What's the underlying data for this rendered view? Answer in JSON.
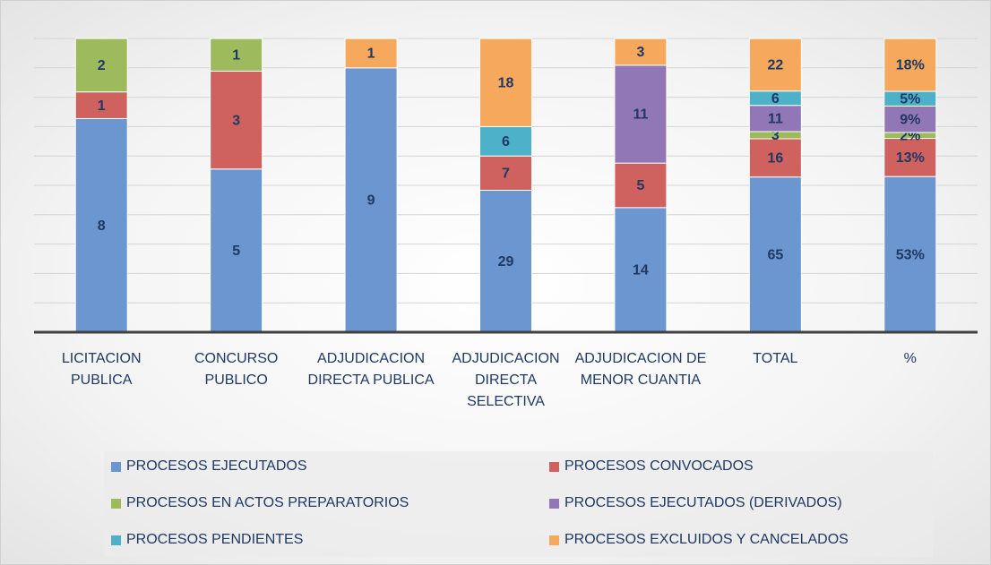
{
  "chart_data": {
    "type": "stacked_percent_bar",
    "categories": [
      "LICITACION PUBLICA",
      "CONCURSO PUBLICO",
      "ADJUDICACION DIRECTA PUBLICA",
      "ADJUDICACION DIRECTA SELECTIVA",
      "ADJUDICACION DE MENOR CUANTIA",
      "TOTAL",
      "%"
    ],
    "series": [
      {
        "name": "PROCESOS EJECUTADOS",
        "color": "#6b96cf",
        "values": [
          8,
          5,
          9,
          29,
          14,
          65,
          53
        ],
        "value_labels": [
          null,
          null,
          null,
          null,
          null,
          null,
          "53%"
        ]
      },
      {
        "name": "PROCESOS CONVOCADOS",
        "color": "#cf625e",
        "values": [
          1,
          3,
          null,
          7,
          5,
          16,
          13
        ],
        "value_labels": [
          null,
          null,
          null,
          null,
          null,
          null,
          "13%"
        ]
      },
      {
        "name": "PROCESOS EN ACTOS PREPARATORIOS",
        "color": "#9dbb5c",
        "values": [
          2,
          1,
          null,
          null,
          null,
          3,
          2
        ],
        "value_labels": [
          null,
          null,
          null,
          null,
          null,
          null,
          "2%"
        ]
      },
      {
        "name": "PROCESOS EJECUTADOS (DERIVADOS)",
        "color": "#9177b5",
        "values": [
          null,
          null,
          null,
          null,
          11,
          11,
          9
        ],
        "value_labels": [
          null,
          null,
          null,
          null,
          null,
          null,
          "9%"
        ]
      },
      {
        "name": "PROCESOS PENDIENTES",
        "color": "#4db2c9",
        "values": [
          null,
          null,
          null,
          6,
          null,
          6,
          5
        ],
        "value_labels": [
          null,
          null,
          null,
          null,
          null,
          null,
          "5%"
        ]
      },
      {
        "name": "PROCESOS EXCLUIDOS Y CANCELADOS",
        "color": "#f6a85c",
        "values": [
          null,
          null,
          1,
          18,
          3,
          22,
          18
        ],
        "value_labels": [
          null,
          null,
          null,
          null,
          null,
          null,
          "18%"
        ]
      }
    ],
    "ylim": [
      0,
      100
    ],
    "yticks": [
      0,
      10,
      20,
      30,
      40,
      50,
      60,
      70,
      80,
      90,
      100
    ],
    "grid": true
  }
}
